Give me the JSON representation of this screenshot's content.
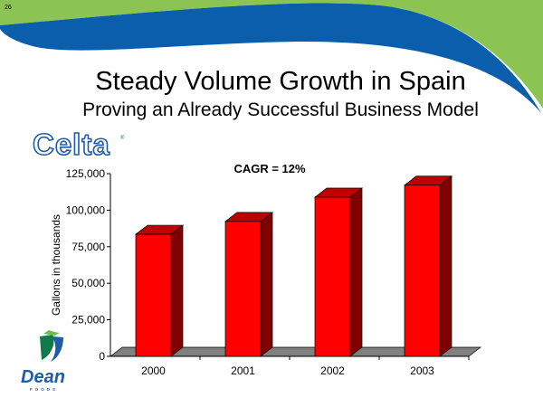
{
  "slide": {
    "page_number": "26",
    "title": "Steady Volume Growth in Spain",
    "subtitle": "Proving an Already Successful Business Model",
    "logos": {
      "top": "Celta",
      "bottom": "Dean",
      "bottom_tagline": "FOODS"
    },
    "colors": {
      "green": "#8CC453",
      "blue": "#0A5EAB",
      "bar_front": "#FF0000",
      "bar_side": "#800000",
      "bar_top": "#C00000",
      "floor": "#808080"
    }
  },
  "chart_data": {
    "type": "bar",
    "style": "3d-column",
    "annotation": "CAGR = 12%",
    "ylabel": "Gallons in thousands",
    "xlabel": "",
    "categories": [
      "2000",
      "2001",
      "2002",
      "2003"
    ],
    "values": [
      83500,
      92300,
      108900,
      117100
    ],
    "ylim": [
      0,
      125000
    ],
    "yticks": [
      0,
      25000,
      50000,
      75000,
      100000,
      125000
    ],
    "ytick_labels": [
      "0",
      "25,000",
      "50,000",
      "75,000",
      "100,000",
      "125,000"
    ],
    "grid": false,
    "legend": "none"
  }
}
